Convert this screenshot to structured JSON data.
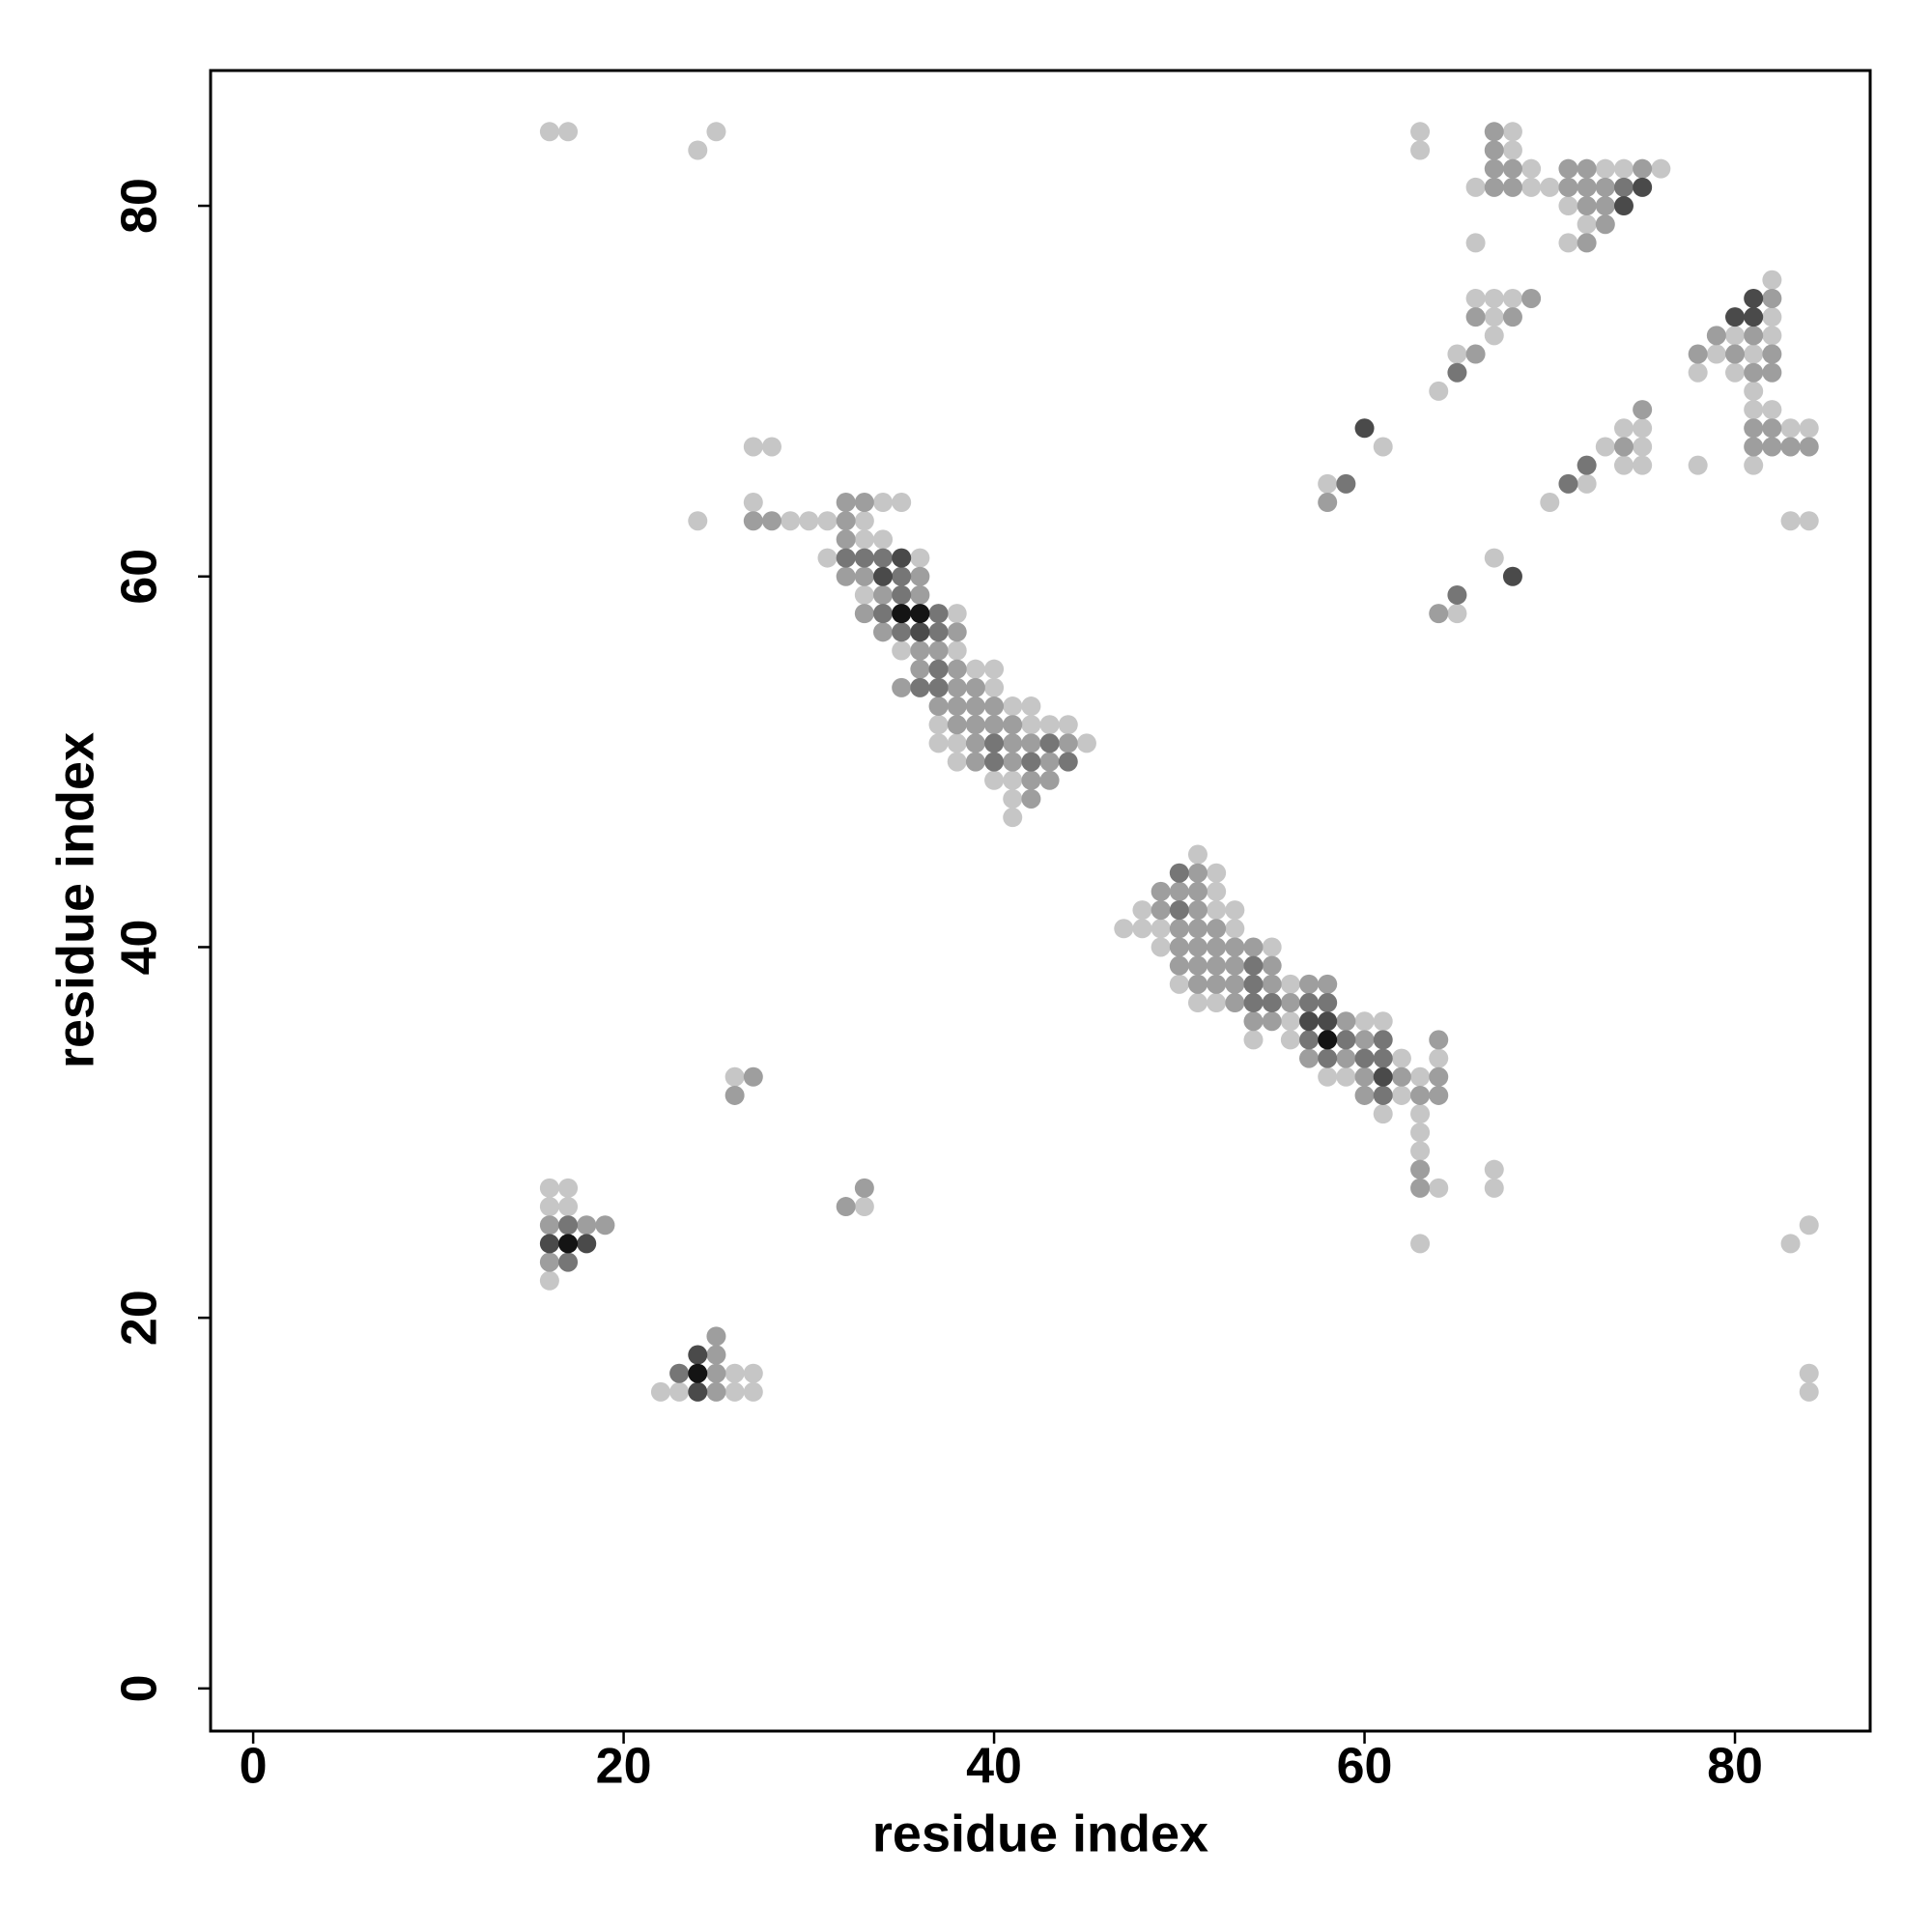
{
  "chart_data": {
    "type": "scatter",
    "x_label": "residue index",
    "y_label": "residue index",
    "xlim": [
      -2.3,
      87.3
    ],
    "ylim": [
      -2.3,
      87.3
    ],
    "xticks": [
      0,
      20,
      40,
      60,
      80
    ],
    "yticks": [
      0,
      20,
      40,
      60,
      80
    ],
    "series": [
      {
        "color": "#c6c6c6",
        "x": [
          16,
          17,
          25,
          63,
          68,
          24,
          63,
          68,
          69,
          73,
          74,
          76,
          66,
          69,
          70,
          71,
          72,
          66,
          71,
          82,
          66,
          67,
          68,
          67,
          82,
          67,
          80,
          82,
          65,
          79,
          81,
          78,
          80,
          64,
          81,
          81,
          82,
          74,
          75,
          83,
          84,
          27,
          28,
          61,
          73,
          75,
          74,
          75,
          78,
          81,
          58,
          72,
          27,
          34,
          35,
          70,
          24,
          29,
          30,
          31,
          33,
          83,
          84,
          33,
          34,
          31,
          36,
          67,
          33,
          38,
          65,
          35,
          38,
          39,
          40,
          40,
          41,
          42,
          37,
          42,
          43,
          44,
          37,
          38,
          45,
          38,
          40,
          41,
          41,
          41,
          51,
          52,
          52,
          48,
          52,
          53,
          47,
          48,
          49,
          53,
          49,
          55,
          50,
          56,
          51,
          52,
          56,
          60,
          61,
          54,
          56,
          62,
          64,
          26,
          58,
          59,
          63,
          62,
          61,
          63,
          63,
          63,
          67,
          16,
          17,
          64,
          67,
          16,
          17,
          33,
          84,
          63,
          83,
          16,
          26,
          27,
          84,
          22,
          23,
          26,
          27,
          84
        ],
        "values": [
          84,
          84,
          84,
          84,
          84,
          83,
          83,
          83,
          82,
          82,
          82,
          82,
          81,
          81,
          81,
          80,
          79,
          78,
          78,
          76,
          75,
          75,
          75,
          74,
          74,
          73,
          73,
          73,
          72,
          72,
          72,
          71,
          71,
          70,
          70,
          69,
          69,
          68,
          68,
          68,
          68,
          67,
          67,
          67,
          67,
          67,
          66,
          66,
          66,
          66,
          65,
          65,
          64,
          64,
          64,
          64,
          63,
          63,
          63,
          63,
          63,
          63,
          63,
          62,
          62,
          61,
          61,
          61,
          59,
          58,
          58,
          56,
          56,
          55,
          55,
          54,
          53,
          53,
          52,
          52,
          52,
          52,
          51,
          51,
          51,
          50,
          49,
          49,
          48,
          47,
          45,
          44,
          43,
          42,
          42,
          42,
          41,
          41,
          41,
          41,
          40,
          40,
          38,
          38,
          37,
          37,
          36,
          36,
          36,
          35,
          35,
          34,
          34,
          33,
          33,
          33,
          33,
          32,
          31,
          31,
          30,
          29,
          28,
          27,
          27,
          27,
          27,
          26,
          26,
          26,
          25,
          24,
          24,
          22,
          17,
          17,
          17,
          16,
          16,
          16,
          16,
          16
        ]
      },
      {
        "color": "#9e9e9e",
        "x": [
          67,
          67,
          67,
          68,
          71,
          72,
          75,
          67,
          68,
          71,
          72,
          73,
          72,
          73,
          73,
          72,
          69,
          82,
          66,
          68,
          79,
          81,
          66,
          78,
          80,
          82,
          81,
          82,
          75,
          81,
          82,
          74,
          81,
          82,
          83,
          84,
          32,
          33,
          58,
          27,
          28,
          32,
          32,
          32,
          33,
          36,
          34,
          36,
          33,
          64,
          34,
          38,
          36,
          37,
          36,
          38,
          35,
          38,
          39,
          37,
          38,
          39,
          40,
          38,
          39,
          40,
          41,
          39,
          41,
          42,
          44,
          39,
          41,
          43,
          42,
          43,
          42,
          51,
          49,
          50,
          51,
          49,
          51,
          50,
          51,
          52,
          50,
          51,
          52,
          53,
          54,
          50,
          51,
          52,
          53,
          55,
          51,
          52,
          53,
          55,
          57,
          58,
          53,
          56,
          54,
          55,
          59,
          60,
          64,
          57,
          59,
          27,
          60,
          62,
          64,
          26,
          60,
          63,
          64,
          63,
          33,
          63,
          32,
          16,
          18,
          19,
          16,
          25,
          25,
          25,
          25
        ],
        "values": [
          84,
          83,
          82,
          82,
          82,
          82,
          82,
          81,
          81,
          81,
          81,
          81,
          80,
          80,
          79,
          78,
          75,
          75,
          74,
          74,
          73,
          73,
          72,
          72,
          72,
          72,
          71,
          71,
          69,
          68,
          68,
          67,
          67,
          67,
          67,
          67,
          64,
          64,
          64,
          63,
          63,
          63,
          62,
          60,
          60,
          60,
          59,
          59,
          58,
          58,
          57,
          57,
          56,
          56,
          55,
          55,
          54,
          54,
          54,
          53,
          53,
          53,
          53,
          52,
          52,
          52,
          52,
          51,
          51,
          51,
          51,
          50,
          50,
          50,
          49,
          49,
          48,
          44,
          43,
          43,
          43,
          42,
          42,
          41,
          41,
          41,
          40,
          40,
          40,
          40,
          40,
          39,
          39,
          39,
          39,
          39,
          38,
          38,
          38,
          38,
          38,
          38,
          37,
          37,
          36,
          36,
          36,
          35,
          35,
          34,
          34,
          33,
          33,
          33,
          33,
          32,
          32,
          32,
          32,
          28,
          27,
          27,
          26,
          25,
          25,
          25,
          23,
          19,
          18,
          17,
          16
        ]
      },
      {
        "color": "#767676",
        "x": [
          74,
          65,
          72,
          59,
          71,
          32,
          33,
          34,
          35,
          35,
          65,
          34,
          37,
          35,
          37,
          37,
          36,
          37,
          40,
          43,
          40,
          42,
          44,
          50,
          50,
          54,
          54,
          54,
          55,
          57,
          58,
          57,
          59,
          61,
          58,
          60,
          61,
          61,
          17,
          17,
          23
        ],
        "values": [
          81,
          71,
          66,
          65,
          65,
          61,
          61,
          61,
          60,
          59,
          59,
          58,
          58,
          57,
          57,
          55,
          54,
          54,
          51,
          51,
          50,
          50,
          50,
          44,
          42,
          39,
          38,
          37,
          37,
          37,
          37,
          35,
          35,
          35,
          34,
          34,
          34,
          32,
          25,
          23,
          17
        ]
      },
      {
        "color": "#4a4a4a",
        "x": [
          75,
          74,
          81,
          80,
          81,
          60,
          35,
          34,
          68,
          36,
          57,
          58,
          61,
          16,
          18,
          24,
          24
        ],
        "values": [
          81,
          80,
          75,
          74,
          74,
          68,
          61,
          60,
          60,
          57,
          36,
          36,
          33,
          24,
          24,
          18,
          16
        ]
      },
      {
        "color": "#141414",
        "x": [
          35,
          36,
          58,
          17,
          24
        ],
        "values": [
          58,
          58,
          35,
          24,
          17
        ]
      }
    ]
  }
}
